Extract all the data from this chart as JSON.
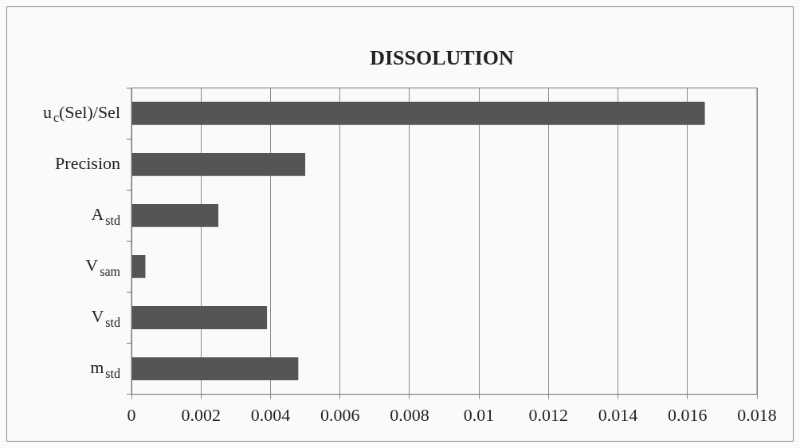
{
  "chart_data": {
    "type": "bar",
    "orientation": "horizontal",
    "title": "DISSOLUTION",
    "categories": [
      "u$_{c}$(Sel)/Sel",
      "Precision",
      "A$_{std}$",
      "V$_{sam}$",
      "V$_{std}$",
      "m$_{std}$"
    ],
    "values": [
      0.0165,
      0.005,
      0.0025,
      0.0004,
      0.0039,
      0.0048
    ],
    "color": "#555555",
    "xlim": [
      0,
      0.018
    ],
    "xticks": [
      0,
      0.002,
      0.004,
      0.006,
      0.008,
      0.01,
      0.012,
      0.014,
      0.016,
      0.018
    ],
    "grid": "x",
    "legend": false
  }
}
